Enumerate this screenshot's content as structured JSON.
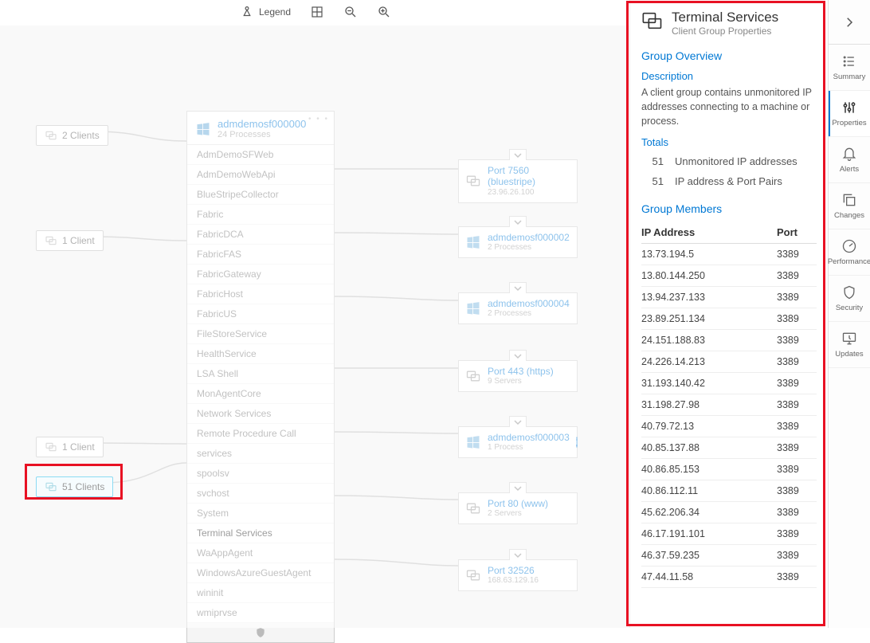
{
  "toolbar": {
    "legend": "Legend"
  },
  "clients": {
    "c2": "2 Clients",
    "c1a": "1 Client",
    "c1b": "1 Client",
    "c51": "51 Clients"
  },
  "machine": {
    "name": "admdemosf000000",
    "sub": "24 Processes",
    "processes": [
      "AdmDemoSFWeb",
      "AdmDemoWebApi",
      "BlueStripeCollector",
      "Fabric",
      "FabricDCA",
      "FabricFAS",
      "FabricGateway",
      "FabricHost",
      "FabricUS",
      "FileStoreService",
      "HealthService",
      "LSA Shell",
      "MonAgentCore",
      "Network Services",
      "Remote Procedure Call",
      "services",
      "spoolsv",
      "svchost",
      "System",
      "Terminal Services",
      "WaAppAgent",
      "WindowsAzureGuestAgent",
      "wininit",
      "wmiprvse"
    ],
    "active_index": 19
  },
  "right_nodes": [
    {
      "title": "Port 7560 (bluestripe)",
      "sub": "23.96.26.100",
      "type": "port"
    },
    {
      "title": "admdemosf000002",
      "sub": "2 Processes",
      "type": "machine"
    },
    {
      "title": "admdemosf000004",
      "sub": "2 Processes",
      "type": "machine"
    },
    {
      "title": "Port 443 (https)",
      "sub": "9 Servers",
      "type": "port"
    },
    {
      "title": "admdemosf000003",
      "sub": "1 Process",
      "type": "machine",
      "info": true
    },
    {
      "title": "Port 80 (www)",
      "sub": "2 Servers",
      "type": "port"
    },
    {
      "title": "Port 32526",
      "sub": "168.63.129.16",
      "type": "port"
    }
  ],
  "panel": {
    "title": "Terminal Services",
    "subtitle": "Client Group Properties",
    "overview_heading": "Group Overview",
    "desc_heading": "Description",
    "description": "A client group contains unmonitored IP addresses connecting to a machine or process.",
    "totals_heading": "Totals",
    "totals": [
      {
        "n": "51",
        "label": "Unmonitored IP addresses"
      },
      {
        "n": "51",
        "label": "IP address & Port Pairs"
      }
    ],
    "members_heading": "Group Members",
    "col_ip": "IP Address",
    "col_port": "Port",
    "members": [
      {
        "ip": "13.73.194.5",
        "port": "3389"
      },
      {
        "ip": "13.80.144.250",
        "port": "3389"
      },
      {
        "ip": "13.94.237.133",
        "port": "3389"
      },
      {
        "ip": "23.89.251.134",
        "port": "3389"
      },
      {
        "ip": "24.151.188.83",
        "port": "3389"
      },
      {
        "ip": "24.226.14.213",
        "port": "3389"
      },
      {
        "ip": "31.193.140.42",
        "port": "3389"
      },
      {
        "ip": "31.198.27.98",
        "port": "3389"
      },
      {
        "ip": "40.79.72.13",
        "port": "3389"
      },
      {
        "ip": "40.85.137.88",
        "port": "3389"
      },
      {
        "ip": "40.86.85.153",
        "port": "3389"
      },
      {
        "ip": "40.86.112.11",
        "port": "3389"
      },
      {
        "ip": "45.62.206.34",
        "port": "3389"
      },
      {
        "ip": "46.17.191.101",
        "port": "3389"
      },
      {
        "ip": "46.37.59.235",
        "port": "3389"
      },
      {
        "ip": "47.44.11.58",
        "port": "3389"
      }
    ]
  },
  "rail": {
    "items": [
      {
        "label": "Summary",
        "icon": "list"
      },
      {
        "label": "Properties",
        "icon": "sliders",
        "active": true
      },
      {
        "label": "Alerts",
        "icon": "bell"
      },
      {
        "label": "Changes",
        "icon": "copy"
      },
      {
        "label": "Performance",
        "icon": "gauge"
      },
      {
        "label": "Security",
        "icon": "shield"
      },
      {
        "label": "Updates",
        "icon": "monitor"
      }
    ]
  }
}
